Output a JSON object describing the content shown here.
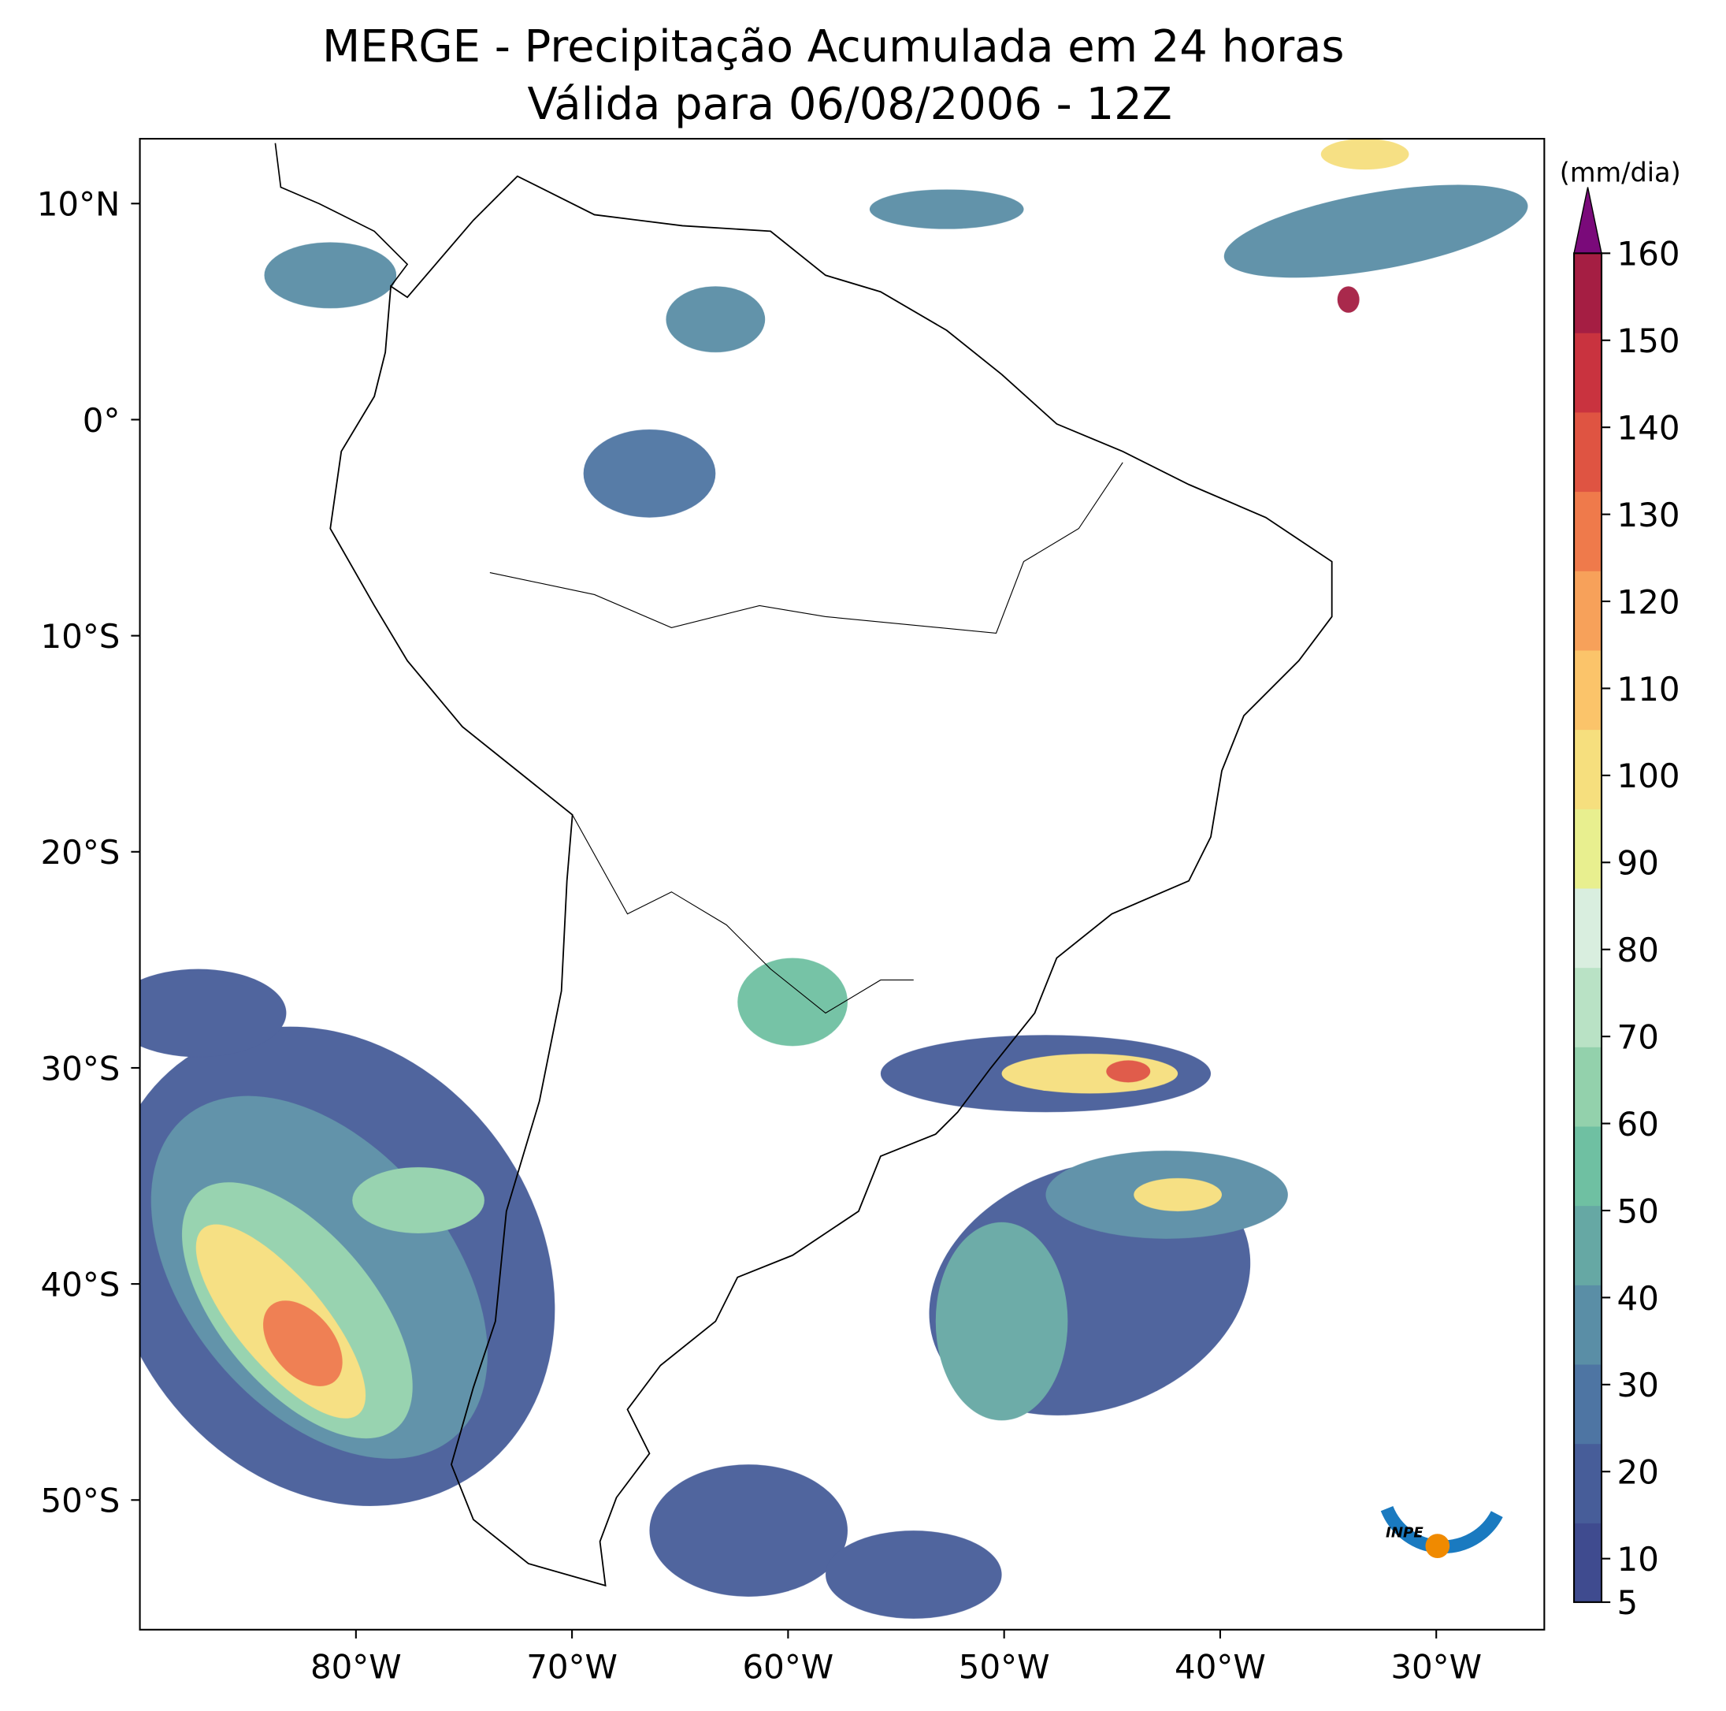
{
  "title": "MERGE - Precipitação Acumulada em 24 horas",
  "subtitle": "Válida para 06/08/2006 - 12Z",
  "map": {
    "xlim": [
      -90,
      -25
    ],
    "ylim": [
      -56,
      13
    ],
    "xticks": [
      {
        "value": -80,
        "label": "80°W"
      },
      {
        "value": -70,
        "label": "70°W"
      },
      {
        "value": -60,
        "label": "60°W"
      },
      {
        "value": -50,
        "label": "50°W"
      },
      {
        "value": -40,
        "label": "40°W"
      },
      {
        "value": -30,
        "label": "30°W"
      }
    ],
    "yticks": [
      {
        "value": 10,
        "label": "10°N"
      },
      {
        "value": 0,
        "label": "0°"
      },
      {
        "value": -10,
        "label": "10°S"
      },
      {
        "value": -20,
        "label": "20°S"
      },
      {
        "value": -30,
        "label": "30°S"
      },
      {
        "value": -40,
        "label": "40°S"
      },
      {
        "value": -50,
        "label": "50°S"
      }
    ]
  },
  "colorbar": {
    "label": "(mm/dia)",
    "lim": [
      5,
      160
    ],
    "ticks": [
      5,
      10,
      20,
      30,
      40,
      50,
      60,
      70,
      80,
      90,
      100,
      110,
      120,
      130,
      140,
      150,
      160
    ],
    "colors": [
      "#3f4b8f",
      "#475d99",
      "#4e75a3",
      "#5a8ea6",
      "#66a8a4",
      "#6fc0a2",
      "#93d1ac",
      "#b9e2c5",
      "#d9eedf",
      "#e8ef8f",
      "#f6df7e",
      "#fbc46a",
      "#f7a15a",
      "#ef7a4b",
      "#df5442",
      "#c9333f",
      "#a51e43"
    ],
    "extend_color": "#7a0a7a"
  },
  "logo": "INPE"
}
